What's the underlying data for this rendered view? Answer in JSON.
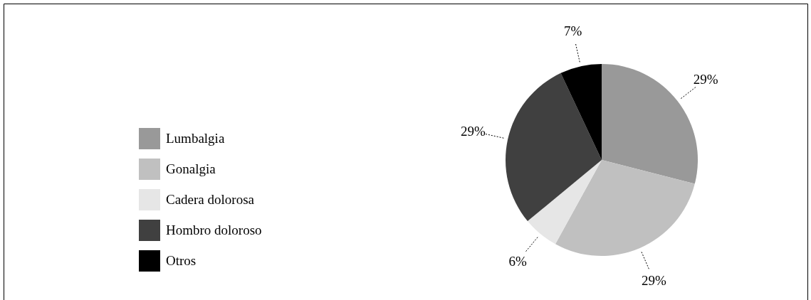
{
  "chart_data": {
    "type": "pie",
    "categories": [
      "Lumbalgia",
      "Gonalgia",
      "Cadera dolorosa",
      "Hombro doloroso",
      "Otros"
    ],
    "values": [
      29,
      29,
      6,
      29,
      7
    ],
    "value_labels": [
      "29%",
      "29%",
      "6%",
      "29%",
      "7%"
    ],
    "colors": [
      "#999999",
      "#c0c0c0",
      "#e6e6e6",
      "#404040",
      "#000000"
    ],
    "legend": "left"
  }
}
